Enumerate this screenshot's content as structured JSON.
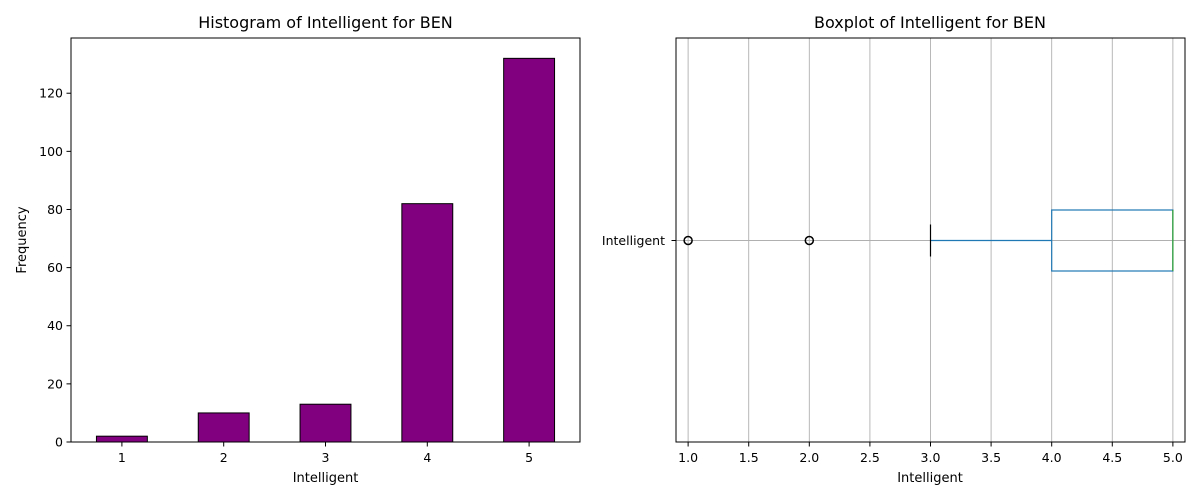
{
  "colors": {
    "bar_fill": "#800080",
    "bar_edge": "#000000",
    "box": "#1f77b4",
    "median": "#2ca02c",
    "grid": "#b0b0b0",
    "axis": "#000000"
  },
  "chart_data": [
    {
      "type": "bar",
      "title": "Histogram of Intelligent for BEN",
      "xlabel": "Intelligent",
      "ylabel": "Frequency",
      "categories": [
        "1",
        "2",
        "3",
        "4",
        "5"
      ],
      "values": [
        2,
        10,
        13,
        82,
        132
      ],
      "ylim": [
        0,
        139
      ],
      "yticks": [
        0,
        20,
        40,
        60,
        80,
        100,
        120
      ],
      "grid": false
    },
    {
      "type": "boxplot",
      "title": "Boxplot of Intelligent for BEN",
      "xlabel": "Intelligent",
      "category": "Intelligent",
      "xlim": [
        0.9,
        5.1
      ],
      "xticks": [
        "1.0",
        "1.5",
        "2.0",
        "2.5",
        "3.0",
        "3.5",
        "4.0",
        "4.5",
        "5.0"
      ],
      "whisker_low": 3.0,
      "q1": 4.0,
      "median": 5.0,
      "q3": 5.0,
      "whisker_high": 5.0,
      "outliers": [
        1.0,
        2.0
      ],
      "grid": true
    }
  ]
}
